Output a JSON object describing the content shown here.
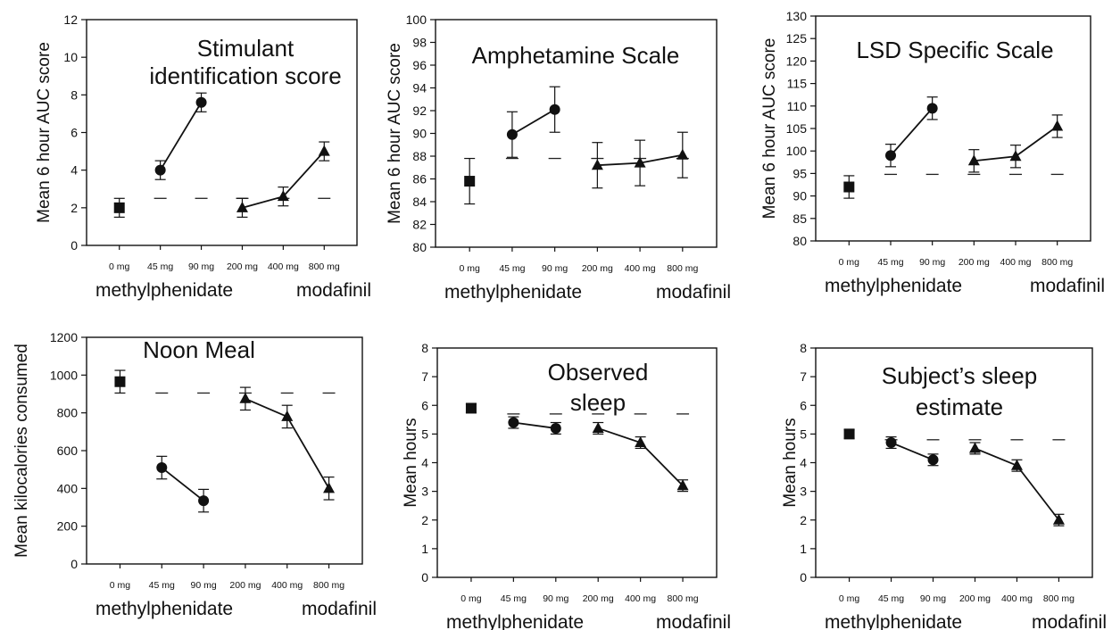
{
  "chart_data": [
    {
      "type": "scatter",
      "title_lines": [
        "Stimulant",
        "identification score"
      ],
      "ylabel": "Mean 6 hour AUC score",
      "ylim": [
        0,
        12
      ],
      "yticks": [
        "0",
        "2",
        "4",
        "6",
        "8",
        "10",
        "12"
      ],
      "categories": [
        "0 mg",
        "45 mg",
        "90 mg",
        "200 mg",
        "400 mg",
        "800 mg"
      ],
      "group_labels": [
        "methylphenidate",
        "modafinil"
      ],
      "reference_level": 2.5,
      "series": [
        {
          "marker": "square",
          "x": [
            "0 mg"
          ],
          "y": [
            2.0
          ],
          "err": [
            0.5
          ]
        },
        {
          "marker": "circle",
          "x": [
            "45 mg",
            "90 mg"
          ],
          "y": [
            4.0,
            7.6
          ],
          "err": [
            0.5,
            0.5
          ]
        },
        {
          "marker": "triangle",
          "x": [
            "200 mg",
            "400 mg",
            "800 mg"
          ],
          "y": [
            2.0,
            2.6,
            5.0
          ],
          "err": [
            0.5,
            0.5,
            0.5
          ]
        }
      ]
    },
    {
      "type": "scatter",
      "title_lines": [
        "Amphetamine Scale"
      ],
      "ylabel": "Mean 6 hour AUC score",
      "ylim": [
        80,
        100
      ],
      "yticks": [
        "80",
        "82",
        "84",
        "86",
        "88",
        "90",
        "92",
        "94",
        "96",
        "98",
        "100"
      ],
      "categories": [
        "0 mg",
        "45 mg",
        "90 mg",
        "200 mg",
        "400 mg",
        "800 mg"
      ],
      "group_labels": [
        "methylphenidate",
        "modafinil"
      ],
      "reference_level": 87.8,
      "series": [
        {
          "marker": "square",
          "x": [
            "0 mg"
          ],
          "y": [
            85.8
          ],
          "err": [
            2.0
          ]
        },
        {
          "marker": "circle",
          "x": [
            "45 mg",
            "90 mg"
          ],
          "y": [
            89.9,
            92.1
          ],
          "err": [
            2.0,
            2.0
          ]
        },
        {
          "marker": "triangle",
          "x": [
            "200 mg",
            "400 mg",
            "800 mg"
          ],
          "y": [
            87.2,
            87.4,
            88.1
          ],
          "err": [
            2.0,
            2.0,
            2.0
          ]
        }
      ]
    },
    {
      "type": "scatter",
      "title_lines": [
        "LSD Specific Scale"
      ],
      "ylabel": "Mean 6 hour AUC score",
      "ylim": [
        80,
        130
      ],
      "yticks": [
        "80",
        "85",
        "90",
        "95",
        "100",
        "105",
        "110",
        "115",
        "120",
        "125",
        "130"
      ],
      "categories": [
        "0 mg",
        "45 mg",
        "90 mg",
        "200 mg",
        "400 mg",
        "800 mg"
      ],
      "group_labels": [
        "methylphenidate",
        "modafinil"
      ],
      "reference_level": 94.8,
      "series": [
        {
          "marker": "square",
          "x": [
            "0 mg"
          ],
          "y": [
            92.0
          ],
          "err": [
            2.5
          ]
        },
        {
          "marker": "circle",
          "x": [
            "45 mg",
            "90 mg"
          ],
          "y": [
            99.0,
            109.5
          ],
          "err": [
            2.5,
            2.5
          ]
        },
        {
          "marker": "triangle",
          "x": [
            "200 mg",
            "400 mg",
            "800 mg"
          ],
          "y": [
            97.8,
            98.8,
            105.5
          ],
          "err": [
            2.5,
            2.5,
            2.5
          ]
        }
      ]
    },
    {
      "type": "scatter",
      "title_lines": [
        "Noon Meal"
      ],
      "ylabel": "Mean kilocalories consumed",
      "ylim": [
        0,
        1200
      ],
      "yticks": [
        "0",
        "200",
        "400",
        "600",
        "800",
        "1000",
        "1200"
      ],
      "categories": [
        "0 mg",
        "45 mg",
        "90 mg",
        "200 mg",
        "400 mg",
        "800 mg"
      ],
      "group_labels": [
        "methylphenidate",
        "modafinil"
      ],
      "reference_level": 905,
      "series": [
        {
          "marker": "square",
          "x": [
            "0 mg"
          ],
          "y": [
            965
          ],
          "err": [
            60
          ]
        },
        {
          "marker": "circle",
          "x": [
            "45 mg",
            "90 mg"
          ],
          "y": [
            510,
            335
          ],
          "err": [
            60,
            60
          ]
        },
        {
          "marker": "triangle",
          "x": [
            "200 mg",
            "400 mg",
            "800 mg"
          ],
          "y": [
            875,
            780,
            400
          ],
          "err": [
            60,
            60,
            60
          ]
        }
      ]
    },
    {
      "type": "scatter",
      "title_lines": [
        "Observed",
        "sleep"
      ],
      "ylabel": "Mean  hours",
      "ylim": [
        0,
        8
      ],
      "yticks": [
        "0",
        "1",
        "2",
        "3",
        "4",
        "5",
        "6",
        "7",
        "8"
      ],
      "categories": [
        "0 mg",
        "45 mg",
        "90 mg",
        "200 mg",
        "400 mg",
        "800 mg"
      ],
      "group_labels": [
        "methylphenidate",
        "modafinil"
      ],
      "reference_level": 5.7,
      "series": [
        {
          "marker": "square",
          "x": [
            "0 mg"
          ],
          "y": [
            5.9
          ],
          "err": [
            0.15
          ]
        },
        {
          "marker": "circle",
          "x": [
            "45 mg",
            "90 mg"
          ],
          "y": [
            5.4,
            5.2
          ],
          "err": [
            0.2,
            0.2
          ]
        },
        {
          "marker": "triangle",
          "x": [
            "200 mg",
            "400 mg",
            "800 mg"
          ],
          "y": [
            5.2,
            4.7,
            3.2
          ],
          "err": [
            0.2,
            0.2,
            0.2
          ]
        }
      ]
    },
    {
      "type": "scatter",
      "title_lines": [
        "Subject’s sleep",
        "estimate"
      ],
      "ylabel": "Mean  hours",
      "ylim": [
        0,
        8
      ],
      "yticks": [
        "0",
        "1",
        "2",
        "3",
        "4",
        "5",
        "6",
        "7",
        "8"
      ],
      "categories": [
        "0 mg",
        "45 mg",
        "90 mg",
        "200 mg",
        "400 mg",
        "800 mg"
      ],
      "group_labels": [
        "methylphenidate",
        "modafinil"
      ],
      "reference_level": 4.8,
      "series": [
        {
          "marker": "square",
          "x": [
            "0 mg"
          ],
          "y": [
            5.0
          ],
          "err": [
            0.15
          ]
        },
        {
          "marker": "circle",
          "x": [
            "45 mg",
            "90 mg"
          ],
          "y": [
            4.7,
            4.1
          ],
          "err": [
            0.2,
            0.2
          ]
        },
        {
          "marker": "triangle",
          "x": [
            "200 mg",
            "400 mg",
            "800 mg"
          ],
          "y": [
            4.5,
            3.9,
            2.0
          ],
          "err": [
            0.2,
            0.2,
            0.2
          ]
        }
      ]
    }
  ]
}
